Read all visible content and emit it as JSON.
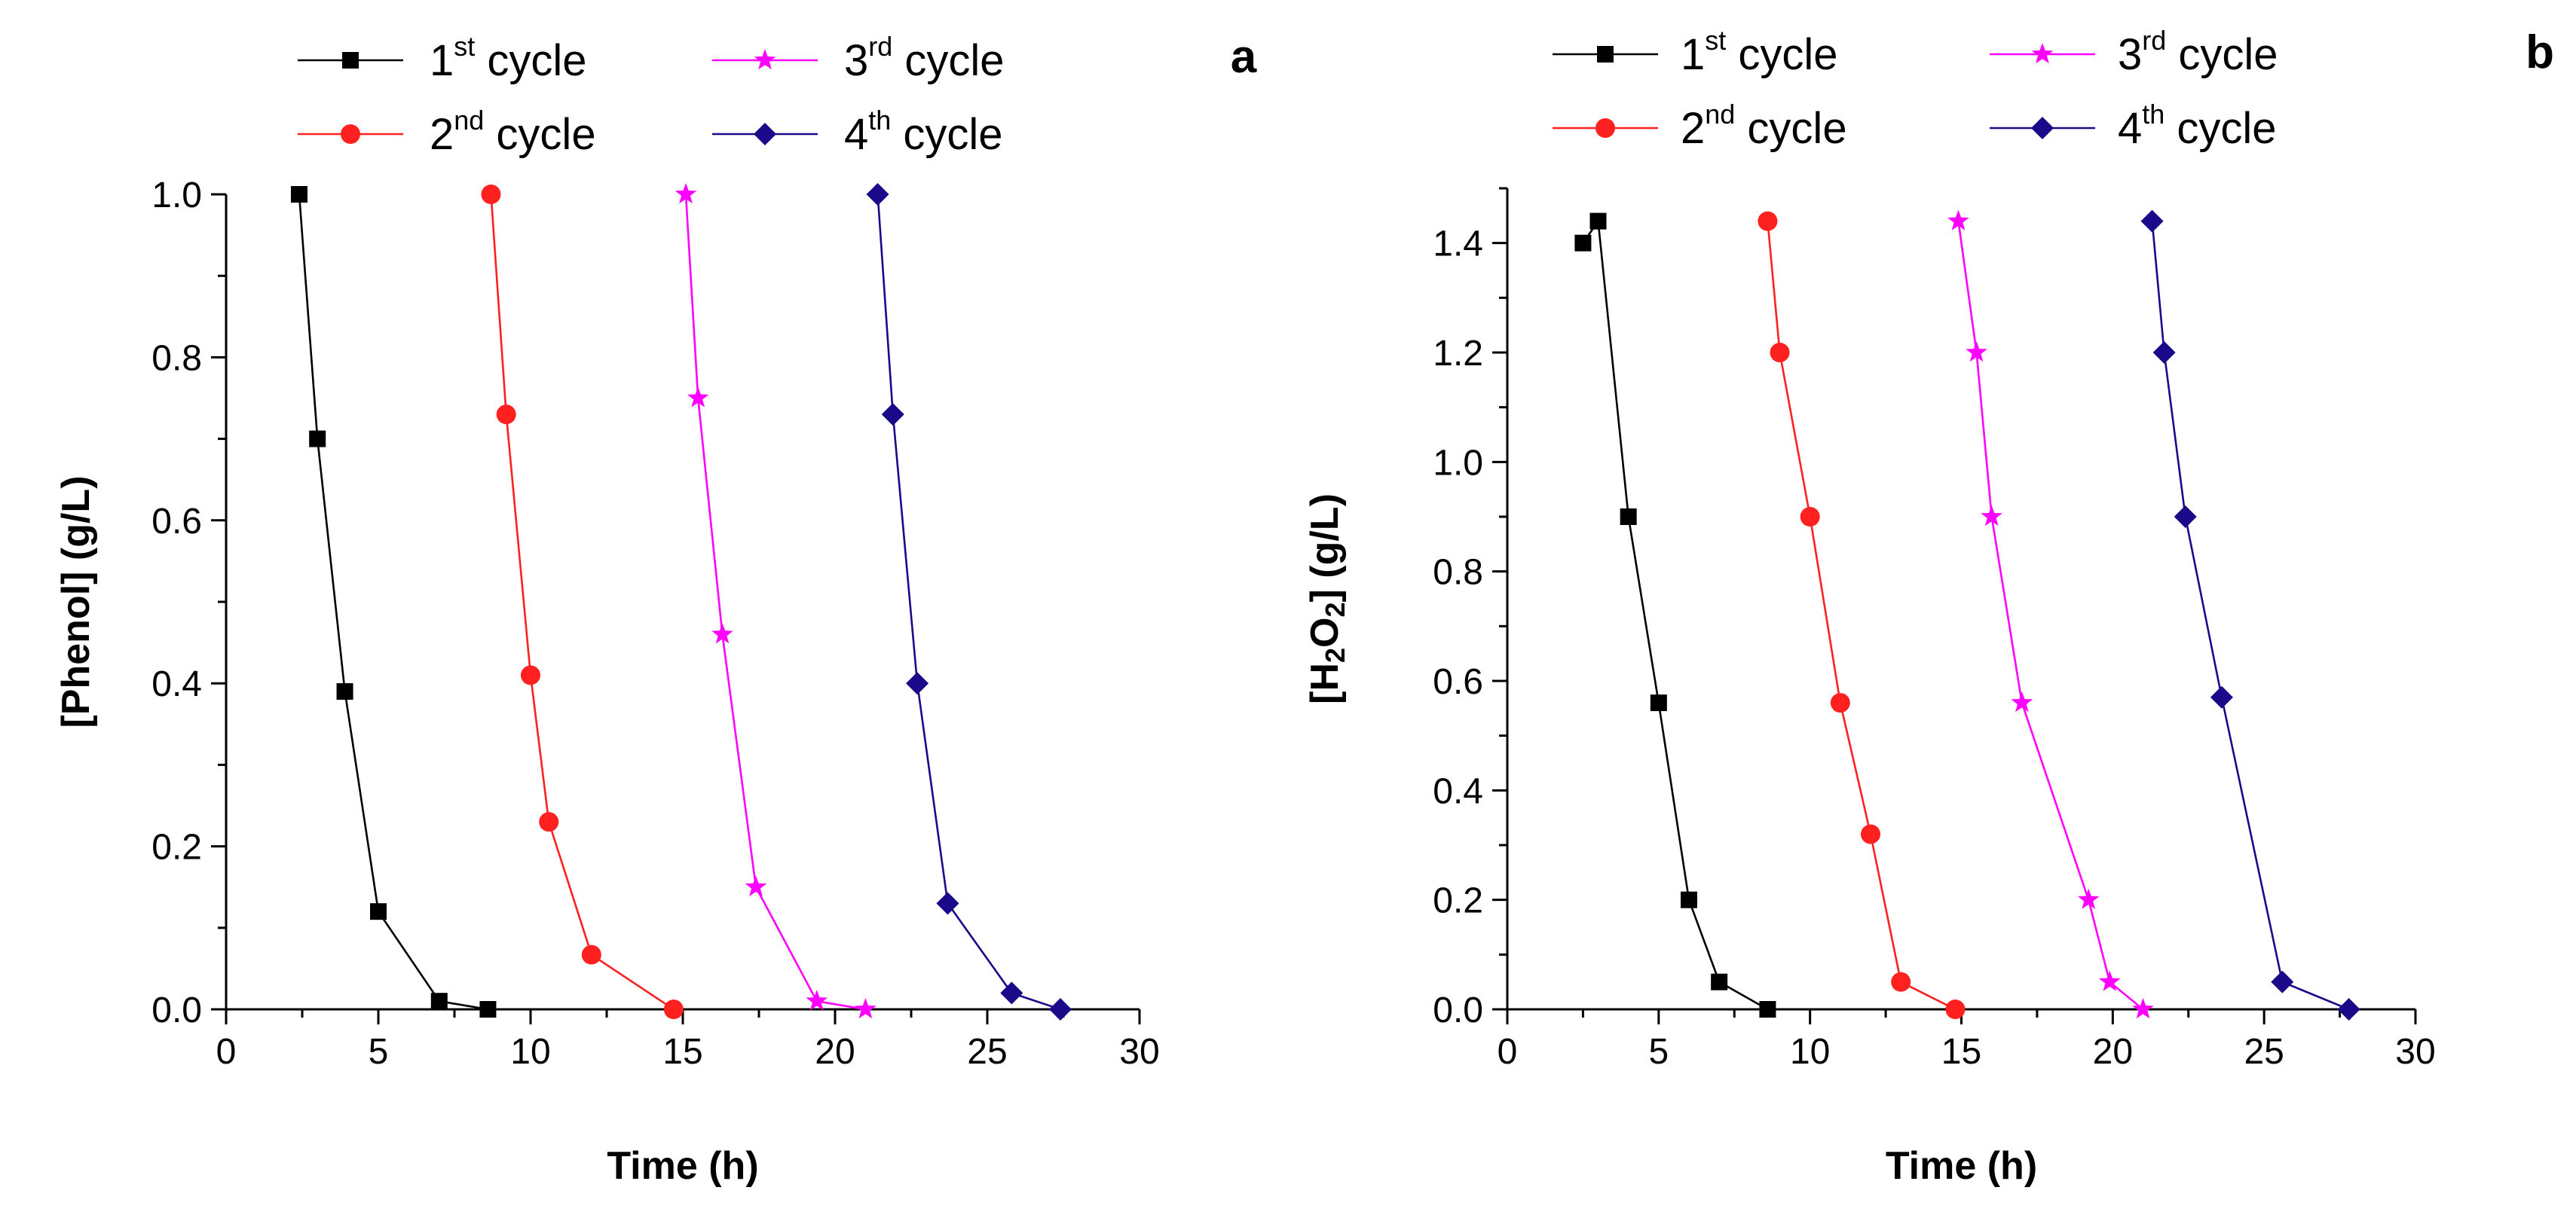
{
  "chart_data": [
    {
      "type": "line",
      "panel_label": "a",
      "xlabel": "Time (h)",
      "ylabel": "[Phenol] (g/L)",
      "ylabel_parts": [
        {
          "t": "[Phenol] (g/L)",
          "sub": false
        }
      ],
      "xlim": [
        0,
        30
      ],
      "ylim": [
        0,
        1.0
      ],
      "xticks": [
        0,
        5,
        10,
        15,
        20,
        25,
        30
      ],
      "xtick_labels": [
        "0",
        "5",
        "10",
        "15",
        "20",
        "25",
        "30"
      ],
      "yticks": [
        0,
        0.2,
        0.4,
        0.6,
        0.8,
        1.0
      ],
      "ytick_labels": [
        "0.0",
        "0.2",
        "0.4",
        "0.6",
        "0.8",
        "1.0"
      ],
      "legend_position": "top",
      "series": [
        {
          "name": "1st cycle",
          "ordinal": "1",
          "suffix": "st",
          "word": "cycle",
          "color": "#000000",
          "marker": "square",
          "x": [
            2.4,
            3.0,
            3.9,
            5.0,
            7.0,
            8.6
          ],
          "y": [
            1.0,
            0.7,
            0.39,
            0.12,
            0.01,
            0.0
          ]
        },
        {
          "name": "2nd cycle",
          "ordinal": "2",
          "suffix": "nd",
          "word": "cycle",
          "color": "#ff2020",
          "marker": "circle",
          "x": [
            8.7,
            9.2,
            10.0,
            10.6,
            12.0,
            14.7
          ],
          "y": [
            1.0,
            0.73,
            0.41,
            0.23,
            0.067,
            0.0
          ]
        },
        {
          "name": "3rd cycle",
          "ordinal": "3",
          "suffix": "rd",
          "word": "cycle",
          "color": "#ff00ff",
          "marker": "star",
          "x": [
            15.1,
            15.5,
            16.3,
            17.4,
            19.4,
            21.0
          ],
          "y": [
            1.0,
            0.75,
            0.46,
            0.15,
            0.01,
            0.0
          ]
        },
        {
          "name": "4th cycle",
          "ordinal": "4",
          "suffix": "th",
          "word": "cycle",
          "color": "#1a0a8a",
          "marker": "diamond",
          "x": [
            21.4,
            21.9,
            22.7,
            23.7,
            25.8,
            27.4
          ],
          "y": [
            1.0,
            0.73,
            0.4,
            0.13,
            0.02,
            0.0
          ]
        }
      ]
    },
    {
      "type": "line",
      "panel_label": "b",
      "xlabel": "Time (h)",
      "ylabel": "[H2O2] (g/L)",
      "ylabel_parts": [
        {
          "t": "[H",
          "sub": false
        },
        {
          "t": "2",
          "sub": true
        },
        {
          "t": "O",
          "sub": false
        },
        {
          "t": "2",
          "sub": true
        },
        {
          "t": "] (g/L)",
          "sub": false
        }
      ],
      "xlim": [
        0,
        30
      ],
      "ylim": [
        0,
        1.5
      ],
      "xticks": [
        0,
        5,
        10,
        15,
        20,
        25,
        30
      ],
      "xtick_labels": [
        "0",
        "5",
        "10",
        "15",
        "20",
        "25",
        "30"
      ],
      "yticks": [
        0,
        0.2,
        0.4,
        0.6,
        0.8,
        1.0,
        1.2,
        1.4
      ],
      "ytick_labels": [
        "0.0",
        "0.2",
        "0.4",
        "0.6",
        "0.8",
        "1.0",
        "1.2",
        "1.4"
      ],
      "legend_position": "top",
      "series": [
        {
          "name": "1st cycle",
          "ordinal": "1",
          "suffix": "st",
          "word": "cycle",
          "color": "#000000",
          "marker": "square",
          "x": [
            2.5,
            3.0,
            4.0,
            5.0,
            6.0,
            7.0,
            8.6
          ],
          "y": [
            1.4,
            1.44,
            0.9,
            0.56,
            0.2,
            0.05,
            0.0
          ]
        },
        {
          "name": "2nd cycle",
          "ordinal": "2",
          "suffix": "nd",
          "word": "cycle",
          "color": "#ff2020",
          "marker": "circle",
          "x": [
            8.6,
            9.0,
            10.0,
            11.0,
            12.0,
            13.0,
            14.8
          ],
          "y": [
            1.44,
            1.2,
            0.9,
            0.56,
            0.32,
            0.05,
            0.0
          ]
        },
        {
          "name": "3rd cycle",
          "ordinal": "3",
          "suffix": "rd",
          "word": "cycle",
          "color": "#ff00ff",
          "marker": "star",
          "x": [
            14.9,
            15.5,
            16.0,
            17.0,
            19.2,
            19.9,
            21.0
          ],
          "y": [
            1.44,
            1.2,
            0.9,
            0.56,
            0.2,
            0.05,
            0.0
          ]
        },
        {
          "name": "4th cycle",
          "ordinal": "4",
          "suffix": "th",
          "word": "cycle",
          "color": "#1a0a8a",
          "marker": "diamond",
          "x": [
            21.3,
            21.7,
            22.4,
            23.6,
            25.6,
            27.8
          ],
          "y": [
            1.44,
            1.2,
            0.9,
            0.57,
            0.05,
            0.0
          ]
        }
      ]
    }
  ]
}
